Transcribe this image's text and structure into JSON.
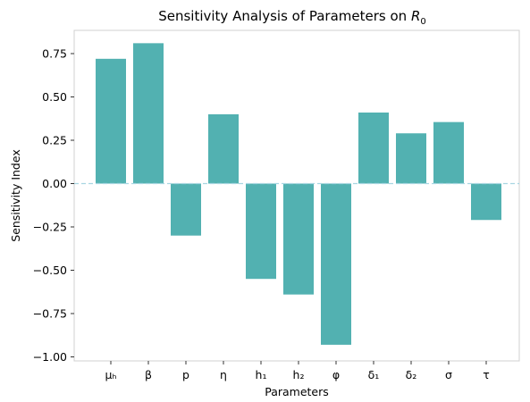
{
  "chart_data": {
    "type": "bar",
    "title": "Sensitivity Analysis of Parameters on ",
    "title_math": "R",
    "title_math_sub": "0",
    "xlabel": "Parameters",
    "ylabel": "Sensitivity Index",
    "categories": [
      "μₕ",
      "β",
      "p",
      "η",
      "h₁",
      "h₂",
      "φ",
      "δ₁",
      "δ₂",
      "σ",
      "τ"
    ],
    "values": [
      0.72,
      0.81,
      -0.3,
      0.4,
      -0.55,
      -0.64,
      -0.93,
      0.41,
      0.29,
      0.355,
      -0.21
    ],
    "ylim": [
      -1.0,
      0.9
    ],
    "yticks": [
      0.75,
      0.5,
      0.25,
      0.0,
      -0.25,
      -0.5,
      -0.75,
      -1.0
    ],
    "ytick_labels": [
      "0.75",
      "0.50",
      "0.25",
      "0.00",
      "−0.25",
      "−0.50",
      "−0.75",
      "−1.00"
    ],
    "bar_color": "#52b1b1",
    "zero_line_color": "#a9d6e2",
    "grid": false,
    "legend": false
  }
}
